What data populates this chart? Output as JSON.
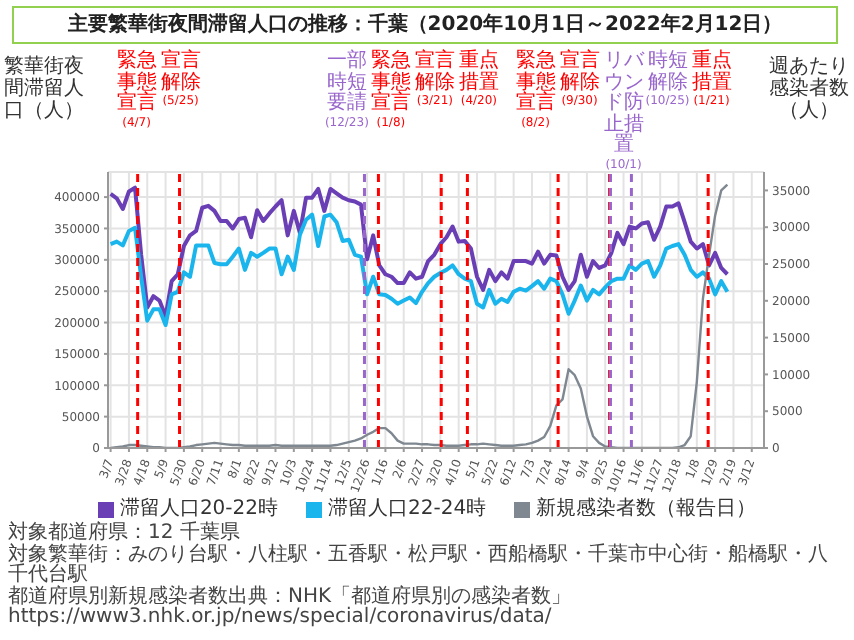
{
  "chart_data": {
    "type": "line",
    "title": "主要繁華街夜間滞留人口の推移：千葉（2020年10月1日～2022年2月12日）",
    "ylabel": "繁華街夜間滞留人口（人）",
    "y2label": "週あたり感染者数（人）",
    "x": [
      "2020-03-07",
      "2020-03-14",
      "2020-03-21",
      "2020-03-28",
      "2020-04-04",
      "2020-04-11",
      "2020-04-18",
      "2020-04-25",
      "2020-05-02",
      "2020-05-09",
      "2020-05-16",
      "2020-05-23",
      "2020-05-30",
      "2020-06-06",
      "2020-06-13",
      "2020-06-20",
      "2020-06-27",
      "2020-07-04",
      "2020-07-11",
      "2020-07-18",
      "2020-07-25",
      "2020-08-01",
      "2020-08-08",
      "2020-08-15",
      "2020-08-22",
      "2020-08-29",
      "2020-09-05",
      "2020-09-12",
      "2020-09-19",
      "2020-09-26",
      "2020-10-03",
      "2020-10-10",
      "2020-10-17",
      "2020-10-24",
      "2020-10-31",
      "2020-11-07",
      "2020-11-14",
      "2020-11-21",
      "2020-11-28",
      "2020-12-05",
      "2020-12-12",
      "2020-12-19",
      "2020-12-26",
      "2021-01-02",
      "2021-01-09",
      "2021-01-16",
      "2021-01-23",
      "2021-01-30",
      "2021-02-06",
      "2021-02-13",
      "2021-02-20",
      "2021-02-27",
      "2021-03-06",
      "2021-03-13",
      "2021-03-20",
      "2021-03-27",
      "2021-04-03",
      "2021-04-10",
      "2021-04-17",
      "2021-04-24",
      "2021-05-01",
      "2021-05-08",
      "2021-05-15",
      "2021-05-22",
      "2021-05-29",
      "2021-06-05",
      "2021-06-12",
      "2021-06-19",
      "2021-06-26",
      "2021-07-03",
      "2021-07-10",
      "2021-07-17",
      "2021-07-24",
      "2021-07-31",
      "2021-08-07",
      "2021-08-14",
      "2021-08-21",
      "2021-08-28",
      "2021-09-04",
      "2021-09-11",
      "2021-09-18",
      "2021-09-25",
      "2021-10-02",
      "2021-10-09",
      "2021-10-16",
      "2021-10-23",
      "2021-10-30",
      "2021-11-06",
      "2021-11-13",
      "2021-11-20",
      "2021-11-27",
      "2021-12-04",
      "2021-12-11",
      "2021-12-18",
      "2021-12-25",
      "2022-01-01",
      "2022-01-08",
      "2022-01-15",
      "2022-01-22",
      "2022-01-29",
      "2022-02-05",
      "2022-02-12"
    ],
    "series": [
      {
        "name": "滞留人口20-22時",
        "color": "#6a3fb5",
        "values": [
          405000,
          398000,
          381000,
          409000,
          415000,
          308000,
          224000,
          242000,
          235000,
          210000,
          266000,
          277000,
          322000,
          339000,
          346000,
          383000,
          386000,
          378000,
          362000,
          362000,
          350000,
          365000,
          367000,
          336000,
          379000,
          362000,
          374000,
          385000,
          395000,
          339000,
          378000,
          343000,
          399000,
          399000,
          413000,
          378000,
          413000,
          406000,
          399000,
          395000,
          393000,
          388000,
          301000,
          339000,
          291000,
          277000,
          273000,
          263000,
          263000,
          280000,
          270000,
          273000,
          298000,
          308000,
          325000,
          336000,
          353000,
          329000,
          330000,
          318000,
          273000,
          252000,
          284000,
          266000,
          280000,
          270000,
          298000,
          298000,
          298000,
          294000,
          313000,
          294000,
          308000,
          307000,
          273000,
          252000,
          266000,
          308000,
          273000,
          298000,
          287000,
          291000,
          311000,
          343000,
          325000,
          353000,
          350000,
          358000,
          360000,
          332000,
          353000,
          385000,
          385000,
          390000,
          360000,
          329000,
          318000,
          325000,
          291000,
          311000,
          287000,
          277000
        ]
      },
      {
        "name": "滞留人口22-24時",
        "color": "#1ab5ec",
        "values": [
          325000,
          329000,
          323000,
          346000,
          351000,
          273000,
          203000,
          221000,
          221000,
          196000,
          245000,
          249000,
          280000,
          273000,
          323000,
          323000,
          323000,
          295000,
          293000,
          293000,
          305000,
          318000,
          284000,
          311000,
          305000,
          311000,
          318000,
          318000,
          277000,
          305000,
          284000,
          340000,
          364000,
          372000,
          322000,
          369000,
          372000,
          360000,
          330000,
          332000,
          308000,
          305000,
          245000,
          273000,
          245000,
          244000,
          238000,
          230000,
          235000,
          240000,
          231000,
          249000,
          263000,
          273000,
          279000,
          284000,
          291000,
          277000,
          270000,
          266000,
          230000,
          224000,
          252000,
          230000,
          238000,
          233000,
          249000,
          254000,
          251000,
          258000,
          266000,
          254000,
          270000,
          266000,
          245000,
          214000,
          235000,
          259000,
          235000,
          252000,
          245000,
          256000,
          266000,
          270000,
          270000,
          291000,
          284000,
          294000,
          298000,
          273000,
          291000,
          318000,
          322000,
          325000,
          308000,
          284000,
          273000,
          280000,
          270000,
          245000,
          266000,
          249000
        ]
      },
      {
        "name": "新規感染者数（報告日）",
        "color": "#7f8890",
        "axis": "y2",
        "values": [
          0,
          100,
          200,
          400,
          400,
          300,
          200,
          100,
          100,
          0,
          0,
          0,
          100,
          200,
          400,
          500,
          600,
          700,
          600,
          500,
          400,
          400,
          300,
          300,
          300,
          300,
          300,
          400,
          300,
          300,
          300,
          300,
          300,
          300,
          300,
          300,
          300,
          400,
          600,
          800,
          1000,
          1300,
          1800,
          2200,
          2700,
          2700,
          2000,
          1000,
          600,
          600,
          600,
          500,
          500,
          400,
          400,
          300,
          300,
          300,
          400,
          500,
          500,
          600,
          500,
          400,
          300,
          300,
          300,
          400,
          500,
          700,
          1000,
          1500,
          3000,
          5800,
          6600,
          10700,
          9900,
          8100,
          4300,
          1600,
          700,
          200,
          100,
          0,
          0,
          0,
          0,
          0,
          0,
          0,
          0,
          0,
          0,
          100,
          400,
          1600,
          9000,
          20300,
          26200,
          31600,
          35000,
          35800
        ]
      }
    ],
    "xlim": [
      "2020-03-04",
      "2022-03-26"
    ],
    "xticks": [
      {
        "value": "2020-03-07",
        "label": "3/7"
      },
      {
        "value": "2020-03-28",
        "label": "3/28"
      },
      {
        "value": "2020-04-18",
        "label": "4/18"
      },
      {
        "value": "2020-05-09",
        "label": "5/9"
      },
      {
        "value": "2020-05-30",
        "label": "5/30"
      },
      {
        "value": "2020-06-20",
        "label": "6/20"
      },
      {
        "value": "2020-07-11",
        "label": "7/11"
      },
      {
        "value": "2020-08-01",
        "label": "8/1"
      },
      {
        "value": "2020-08-22",
        "label": "8/22"
      },
      {
        "value": "2020-09-12",
        "label": "9/12"
      },
      {
        "value": "2020-10-03",
        "label": "10/3"
      },
      {
        "value": "2020-10-24",
        "label": "10/24"
      },
      {
        "value": "2020-11-14",
        "label": "11/14"
      },
      {
        "value": "2020-12-05",
        "label": "12/5"
      },
      {
        "value": "2020-12-26",
        "label": "12/26"
      },
      {
        "value": "2021-01-16",
        "label": "1/16"
      },
      {
        "value": "2021-02-06",
        "label": "2/6"
      },
      {
        "value": "2021-02-27",
        "label": "2/27"
      },
      {
        "value": "2021-03-20",
        "label": "3/20"
      },
      {
        "value": "2021-04-10",
        "label": "4/10"
      },
      {
        "value": "2021-05-01",
        "label": "5/1"
      },
      {
        "value": "2021-05-22",
        "label": "5/22"
      },
      {
        "value": "2021-06-12",
        "label": "6/12"
      },
      {
        "value": "2021-07-03",
        "label": "7/3"
      },
      {
        "value": "2021-07-24",
        "label": "7/24"
      },
      {
        "value": "2021-08-14",
        "label": "8/14"
      },
      {
        "value": "2021-09-04",
        "label": "9/4"
      },
      {
        "value": "2021-09-25",
        "label": "9/25"
      },
      {
        "value": "2021-10-16",
        "label": "10/16"
      },
      {
        "value": "2021-11-06",
        "label": "11/6"
      },
      {
        "value": "2021-11-27",
        "label": "11/27"
      },
      {
        "value": "2021-12-18",
        "label": "12/18"
      },
      {
        "value": "2022-01-08",
        "label": "1/8"
      },
      {
        "value": "2022-01-29",
        "label": "1/29"
      },
      {
        "value": "2022-02-19",
        "label": "2/19"
      },
      {
        "value": "2022-03-12",
        "label": "3/12"
      }
    ],
    "ylim": [
      0,
      440000
    ],
    "yticks": [
      0,
      50000,
      100000,
      150000,
      200000,
      250000,
      300000,
      350000,
      400000
    ],
    "y2lim": [
      0,
      37500
    ],
    "y2ticks": [
      0,
      5000,
      10000,
      15000,
      20000,
      25000,
      30000,
      35000
    ],
    "ref_lines": [
      {
        "axis": "x",
        "value": "2020-04-07",
        "label": "緊急事態宣言\n(4/7)",
        "color": "#ff0000",
        "line_style": "dashed"
      },
      {
        "axis": "x",
        "value": "2020-05-25",
        "label": "宣言解除\n(5/25)",
        "color": "#ff0000",
        "line_style": "dashed"
      },
      {
        "axis": "x",
        "value": "2020-12-23",
        "label": "一部時短要請\n(12/23)",
        "color": "#9966cc",
        "line_style": "dashed"
      },
      {
        "axis": "x",
        "value": "2021-01-08",
        "label": "緊急事態宣言\n(1/8)",
        "color": "#ff0000",
        "line_style": "dashed"
      },
      {
        "axis": "x",
        "value": "2021-03-21",
        "label": "宣言解除\n(3/21)",
        "color": "#ff0000",
        "line_style": "dashed"
      },
      {
        "axis": "x",
        "value": "2021-04-20",
        "label": "重点措置\n(4/20)",
        "color": "#ff0000",
        "line_style": "dashed"
      },
      {
        "axis": "x",
        "value": "2021-08-02",
        "label": "緊急事態宣言\n(8/2)",
        "color": "#ff0000",
        "line_style": "dashed"
      },
      {
        "axis": "x",
        "value": "2021-09-30",
        "label": "宣言解除\n(9/30)",
        "color": "#ff0000",
        "line_style": "dashed"
      },
      {
        "axis": "x",
        "value": "2021-10-01",
        "label": "リバウンド防止措置\n(10/1)",
        "color": "#9966cc",
        "line_style": "dashed"
      },
      {
        "axis": "x",
        "value": "2021-10-25",
        "label": "時短解除\n(10/25)",
        "color": "#9966cc",
        "line_style": "dashed"
      },
      {
        "axis": "x",
        "value": "2022-01-21",
        "label": "重点措置\n(1/21)",
        "color": "#ff0000",
        "line_style": "dashed"
      }
    ],
    "grid": true,
    "legend": "bottom",
    "annotations": [
      "対象都道府県：12 千葉県",
      "対象繁華街：みのり台駅・八柱駅・五香駅・松戸駅・西船橋駅・千葉市中心街・船橋駅・八千代台駅",
      "都道府県別新規感染者数出典：NHK「都道府県別の感染者数」https://www3.nhk.or.jp/news/special/coronavirus/data/"
    ]
  }
}
